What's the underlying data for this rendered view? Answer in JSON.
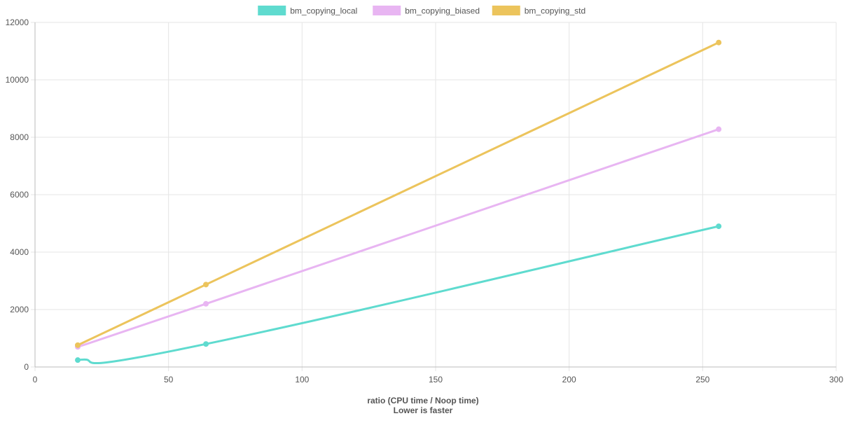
{
  "chart_data": {
    "type": "line",
    "title": "",
    "xlabel": "ratio (CPU time / Noop time)",
    "xlabel_sub": "Lower is faster",
    "ylabel": "",
    "xlim": [
      0,
      300
    ],
    "ylim": [
      0,
      12000
    ],
    "x_ticks": [
      "0",
      "50",
      "100",
      "150",
      "200",
      "250",
      "300"
    ],
    "y_ticks": [
      "0",
      "2000",
      "4000",
      "6000",
      "8000",
      "10000",
      "12000"
    ],
    "grid": true,
    "legend_position": "top",
    "series": [
      {
        "name": "bm_copying_local",
        "color": "#5fdbcf",
        "points": [
          [
            16,
            240
          ],
          [
            64,
            800
          ],
          [
            256,
            4900
          ]
        ]
      },
      {
        "name": "bm_copying_biased",
        "color": "#e8b5f2",
        "points": [
          [
            16,
            700
          ],
          [
            64,
            2200
          ],
          [
            256,
            8280
          ]
        ]
      },
      {
        "name": "bm_copying_std",
        "color": "#ecc45c",
        "points": [
          [
            16,
            760
          ],
          [
            64,
            2870
          ],
          [
            256,
            11300
          ]
        ]
      }
    ]
  }
}
